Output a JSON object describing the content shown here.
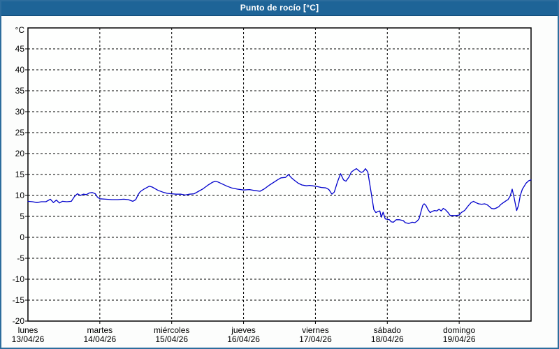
{
  "window": {
    "title": "Punto de rocío [°C]"
  },
  "colors": {
    "titlebar_bg": "#1e6497",
    "titlebar_text": "#ffffff",
    "window_border": "#2d6d9d",
    "page_bg": "#fcfdfc",
    "plot_bg": "#fefffe",
    "grid": "#000000",
    "line": "#0000cc"
  },
  "chart_data": {
    "type": "line",
    "title": "Punto de rocío [°C]",
    "y_unit_label": "°C",
    "ylim": [
      -20,
      50
    ],
    "y_ticks": [
      45,
      40,
      35,
      30,
      25,
      20,
      15,
      10,
      5,
      0,
      -5,
      -10,
      -15,
      -20
    ],
    "x_range_hours": [
      0,
      168
    ],
    "grid": "dashed",
    "legend": "none",
    "days": [
      {
        "name": "lunes",
        "date": "13/04/26"
      },
      {
        "name": "martes",
        "date": "14/04/26"
      },
      {
        "name": "miércoles",
        "date": "15/04/26"
      },
      {
        "name": "jueves",
        "date": "16/04/26"
      },
      {
        "name": "viernes",
        "date": "17/04/26"
      },
      {
        "name": "sábado",
        "date": "18/04/26"
      },
      {
        "name": "domingo",
        "date": "19/04/26"
      }
    ],
    "series": [
      {
        "name": "Punto de rocío",
        "color": "#0000cc",
        "points": [
          [
            0,
            8.6
          ],
          [
            1.5,
            8.5
          ],
          [
            3,
            8.3
          ],
          [
            4.5,
            8.5
          ],
          [
            6,
            8.5
          ],
          [
            7.5,
            9.1
          ],
          [
            8.5,
            8.3
          ],
          [
            9.5,
            8.9
          ],
          [
            10.5,
            8.2
          ],
          [
            11.5,
            8.6
          ],
          [
            13,
            8.5
          ],
          [
            14.5,
            8.6
          ],
          [
            15.5,
            9.7
          ],
          [
            16.5,
            10.4
          ],
          [
            17.5,
            10.0
          ],
          [
            18.5,
            10.3
          ],
          [
            19.5,
            10.2
          ],
          [
            20.5,
            10.6
          ],
          [
            21.5,
            10.7
          ],
          [
            22.5,
            10.4
          ],
          [
            23.2,
            9.6
          ],
          [
            24,
            9.2
          ],
          [
            26,
            9.1
          ],
          [
            28,
            9.0
          ],
          [
            30,
            9.0
          ],
          [
            32,
            9.1
          ],
          [
            33.5,
            9.0
          ],
          [
            35,
            8.6
          ],
          [
            36,
            9.0
          ],
          [
            36.8,
            10.2
          ],
          [
            37.5,
            10.9
          ],
          [
            38.5,
            11.4
          ],
          [
            39.5,
            11.8
          ],
          [
            40.5,
            12.2
          ],
          [
            41.5,
            12.0
          ],
          [
            42.5,
            11.6
          ],
          [
            43.5,
            11.2
          ],
          [
            45,
            10.8
          ],
          [
            46.5,
            10.5
          ],
          [
            48,
            10.4
          ],
          [
            49.5,
            10.3
          ],
          [
            51,
            10.3
          ],
          [
            52.5,
            10.1
          ],
          [
            54,
            10.3
          ],
          [
            55.5,
            10.4
          ],
          [
            57,
            11.0
          ],
          [
            58.5,
            11.6
          ],
          [
            60,
            12.4
          ],
          [
            61.5,
            13.1
          ],
          [
            62.5,
            13.4
          ],
          [
            63.5,
            13.2
          ],
          [
            65,
            12.7
          ],
          [
            66.5,
            12.2
          ],
          [
            68,
            11.8
          ],
          [
            70,
            11.5
          ],
          [
            72,
            11.3
          ],
          [
            74,
            11.4
          ],
          [
            75.5,
            11.2
          ],
          [
            77.5,
            11.0
          ],
          [
            79,
            11.6
          ],
          [
            80.5,
            12.4
          ],
          [
            82,
            13.1
          ],
          [
            83.5,
            13.8
          ],
          [
            84.5,
            14.2
          ],
          [
            86,
            14.3
          ],
          [
            87,
            15.0
          ],
          [
            88,
            14.2
          ],
          [
            89,
            13.6
          ],
          [
            90.3,
            12.9
          ],
          [
            91.5,
            12.5
          ],
          [
            93,
            12.3
          ],
          [
            94,
            12.4
          ],
          [
            95,
            12.3
          ],
          [
            96,
            12.2
          ],
          [
            98,
            11.9
          ],
          [
            99.5,
            11.8
          ],
          [
            100.5,
            11.4
          ],
          [
            101.5,
            10.3
          ],
          [
            102.3,
            10.8
          ],
          [
            103.3,
            13.1
          ],
          [
            104.4,
            15.2
          ],
          [
            105.4,
            13.7
          ],
          [
            106.2,
            13.4
          ],
          [
            107.2,
            14.4
          ],
          [
            108,
            15.6
          ],
          [
            109,
            16.1
          ],
          [
            109.7,
            16.4
          ],
          [
            110.5,
            15.9
          ],
          [
            111.3,
            15.5
          ],
          [
            112,
            15.7
          ],
          [
            112.7,
            16.4
          ],
          [
            113.5,
            15.6
          ],
          [
            114.2,
            12.5
          ],
          [
            114.8,
            9.8
          ],
          [
            115.5,
            6.6
          ],
          [
            116.2,
            5.9
          ],
          [
            117,
            6.2
          ],
          [
            117.5,
            6.3
          ],
          [
            118,
            4.8
          ],
          [
            118.6,
            6.0
          ],
          [
            119.3,
            4.4
          ],
          [
            120,
            4.3
          ],
          [
            120.7,
            4.2
          ],
          [
            121.3,
            3.7
          ],
          [
            122,
            3.6
          ],
          [
            123,
            4.2
          ],
          [
            124,
            4.2
          ],
          [
            125.3,
            4.0
          ],
          [
            126,
            3.5
          ],
          [
            127.2,
            3.3
          ],
          [
            128.3,
            3.6
          ],
          [
            129.2,
            3.5
          ],
          [
            130,
            3.9
          ],
          [
            130.6,
            4.4
          ],
          [
            131.2,
            6.0
          ],
          [
            131.8,
            7.6
          ],
          [
            132.3,
            8.0
          ],
          [
            132.9,
            7.6
          ],
          [
            133.6,
            6.6
          ],
          [
            134.3,
            5.9
          ],
          [
            135,
            6.2
          ],
          [
            135.8,
            6.4
          ],
          [
            136.5,
            6.3
          ],
          [
            137.3,
            6.7
          ],
          [
            138,
            6.3
          ],
          [
            138.7,
            6.9
          ],
          [
            139.4,
            6.6
          ],
          [
            140.3,
            5.9
          ],
          [
            141,
            5.2
          ],
          [
            142,
            5.2
          ],
          [
            143,
            5.2
          ],
          [
            144,
            5.3
          ],
          [
            144.7,
            5.9
          ],
          [
            145.8,
            6.4
          ],
          [
            147,
            7.5
          ],
          [
            148,
            8.3
          ],
          [
            148.8,
            8.6
          ],
          [
            149.5,
            8.3
          ],
          [
            150.5,
            8.0
          ],
          [
            151.5,
            7.9
          ],
          [
            152.5,
            8.0
          ],
          [
            153.3,
            7.8
          ],
          [
            154,
            7.4
          ],
          [
            154.8,
            6.9
          ],
          [
            155.6,
            6.8
          ],
          [
            156.4,
            7.0
          ],
          [
            157.2,
            7.3
          ],
          [
            158,
            7.9
          ],
          [
            158.8,
            8.3
          ],
          [
            159.6,
            8.7
          ],
          [
            160.3,
            9.0
          ],
          [
            161,
            9.8
          ],
          [
            161.7,
            11.5
          ],
          [
            162.3,
            9.6
          ],
          [
            163.2,
            6.4
          ],
          [
            163.8,
            7.6
          ],
          [
            164.4,
            10.0
          ],
          [
            165.1,
            11.5
          ],
          [
            165.8,
            12.3
          ],
          [
            166.3,
            12.9
          ],
          [
            167.2,
            13.5
          ],
          [
            168,
            13.7
          ]
        ]
      }
    ]
  }
}
